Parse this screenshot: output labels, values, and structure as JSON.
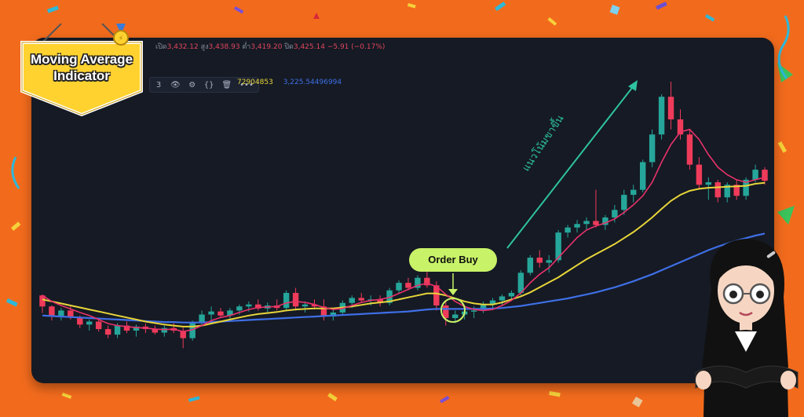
{
  "badge": {
    "title_line1": "Moving Average",
    "title_line2": "Indicator"
  },
  "header": {
    "open_label": "เปิด",
    "open": "3,432.12",
    "high_label": "สูง",
    "high": "3,438.93",
    "low_label": "ต่ำ",
    "low": "3,419.20",
    "close_label": "ปิด",
    "close": "3,425.14",
    "change": "−5.91 (−0.17%)"
  },
  "toolbar": {
    "indicator_num": "3",
    "eye": "👁",
    "gear": "⚙",
    "braces": "{}",
    "trash": "🗑",
    "more": "•••"
  },
  "ma_values": {
    "ma_yellow": "72904853",
    "ma_blue": "3,225.54496994"
  },
  "annotations": {
    "order_buy": "Order Buy",
    "trend": "แนวโน้มขาขึ้น"
  },
  "colors": {
    "up": "#26a69a",
    "down": "#ef3b5a",
    "ma_fast": "#e8326a",
    "ma_mid": "#e8d53a",
    "ma_slow": "#3f6fe6",
    "panel": "#151a24",
    "background": "#f26b1d"
  },
  "chart_data": {
    "type": "candlestick",
    "grid": false,
    "series": [
      {
        "name": "candles",
        "ohlc": [
          [
            3270,
            3272,
            3235,
            3248
          ],
          [
            3248,
            3250,
            3220,
            3228
          ],
          [
            3228,
            3245,
            3220,
            3240
          ],
          [
            3240,
            3248,
            3222,
            3226
          ],
          [
            3226,
            3230,
            3205,
            3212
          ],
          [
            3212,
            3222,
            3200,
            3218
          ],
          [
            3218,
            3222,
            3198,
            3203
          ],
          [
            3203,
            3210,
            3185,
            3192
          ],
          [
            3192,
            3215,
            3185,
            3210
          ],
          [
            3210,
            3218,
            3195,
            3200
          ],
          [
            3200,
            3212,
            3188,
            3208
          ],
          [
            3208,
            3214,
            3195,
            3203
          ],
          [
            3203,
            3210,
            3192,
            3196
          ],
          [
            3196,
            3210,
            3188,
            3205
          ],
          [
            3205,
            3215,
            3195,
            3200
          ],
          [
            3200,
            3206,
            3165,
            3185
          ],
          [
            3185,
            3220,
            3180,
            3215
          ],
          [
            3215,
            3240,
            3210,
            3232
          ],
          [
            3232,
            3248,
            3220,
            3238
          ],
          [
            3238,
            3245,
            3225,
            3230
          ],
          [
            3230,
            3245,
            3222,
            3240
          ],
          [
            3240,
            3252,
            3232,
            3248
          ],
          [
            3248,
            3258,
            3238,
            3252
          ],
          [
            3252,
            3262,
            3240,
            3244
          ],
          [
            3244,
            3256,
            3235,
            3250
          ],
          [
            3250,
            3262,
            3240,
            3245
          ],
          [
            3245,
            3280,
            3240,
            3275
          ],
          [
            3275,
            3285,
            3240,
            3248
          ],
          [
            3248,
            3258,
            3236,
            3252
          ],
          [
            3252,
            3262,
            3242,
            3248
          ],
          [
            3248,
            3262,
            3220,
            3228
          ],
          [
            3228,
            3242,
            3220,
            3236
          ],
          [
            3236,
            3260,
            3230,
            3255
          ],
          [
            3255,
            3270,
            3245,
            3265
          ],
          [
            3265,
            3275,
            3255,
            3260
          ],
          [
            3260,
            3270,
            3250,
            3262
          ],
          [
            3262,
            3270,
            3248,
            3255
          ],
          [
            3255,
            3285,
            3250,
            3280
          ],
          [
            3280,
            3300,
            3275,
            3295
          ],
          [
            3295,
            3305,
            3280,
            3285
          ],
          [
            3285,
            3310,
            3280,
            3305
          ],
          [
            3305,
            3320,
            3285,
            3290
          ],
          [
            3290,
            3298,
            3240,
            3250
          ],
          [
            3250,
            3260,
            3210,
            3225
          ],
          [
            3225,
            3240,
            3215,
            3232
          ],
          [
            3232,
            3245,
            3222,
            3238
          ],
          [
            3238,
            3248,
            3225,
            3240
          ],
          [
            3240,
            3258,
            3235,
            3252
          ],
          [
            3252,
            3265,
            3245,
            3260
          ],
          [
            3260,
            3272,
            3250,
            3268
          ],
          [
            3268,
            3280,
            3260,
            3275
          ],
          [
            3275,
            3320,
            3270,
            3315
          ],
          [
            3315,
            3350,
            3310,
            3345
          ],
          [
            3345,
            3360,
            3325,
            3335
          ],
          [
            3335,
            3350,
            3315,
            3340
          ],
          [
            3340,
            3400,
            3335,
            3395
          ],
          [
            3395,
            3410,
            3385,
            3405
          ],
          [
            3405,
            3420,
            3395,
            3412
          ],
          [
            3412,
            3425,
            3400,
            3418
          ],
          [
            3418,
            3480,
            3405,
            3410
          ],
          [
            3410,
            3430,
            3400,
            3425
          ],
          [
            3425,
            3450,
            3415,
            3440
          ],
          [
            3440,
            3480,
            3430,
            3470
          ],
          [
            3470,
            3490,
            3455,
            3480
          ],
          [
            3480,
            3540,
            3475,
            3535
          ],
          [
            3535,
            3600,
            3525,
            3590
          ],
          [
            3590,
            3670,
            3580,
            3665
          ],
          [
            3665,
            3695,
            3600,
            3620
          ],
          [
            3620,
            3640,
            3580,
            3590
          ],
          [
            3590,
            3600,
            3520,
            3530
          ],
          [
            3530,
            3545,
            3480,
            3490
          ],
          [
            3490,
            3505,
            3460,
            3495
          ],
          [
            3495,
            3500,
            3455,
            3465
          ],
          [
            3465,
            3495,
            3455,
            3490
          ],
          [
            3490,
            3500,
            3460,
            3468
          ],
          [
            3468,
            3505,
            3460,
            3500
          ],
          [
            3500,
            3530,
            3495,
            3520
          ],
          [
            3520,
            3525,
            3490,
            3498
          ]
        ]
      },
      {
        "name": "ma_fast",
        "values": [
          3270,
          3258,
          3250,
          3243,
          3236,
          3230,
          3222,
          3214,
          3210,
          3208,
          3206,
          3205,
          3203,
          3202,
          3203,
          3198,
          3202,
          3210,
          3220,
          3226,
          3230,
          3236,
          3242,
          3246,
          3247,
          3248,
          3255,
          3258,
          3256,
          3252,
          3246,
          3242,
          3244,
          3250,
          3256,
          3260,
          3262,
          3266,
          3274,
          3282,
          3290,
          3294,
          3288,
          3272,
          3258,
          3248,
          3242,
          3240,
          3242,
          3250,
          3260,
          3275,
          3295,
          3312,
          3325,
          3345,
          3365,
          3385,
          3400,
          3408,
          3414,
          3422,
          3435,
          3450,
          3468,
          3495,
          3535,
          3570,
          3595,
          3600,
          3580,
          3550,
          3525,
          3510,
          3500,
          3495,
          3500,
          3505
        ]
      },
      {
        "name": "ma_mid",
        "values": [
          3262,
          3258,
          3254,
          3250,
          3246,
          3242,
          3238,
          3234,
          3230,
          3226,
          3222,
          3218,
          3215,
          3212,
          3210,
          3208,
          3208,
          3210,
          3214,
          3218,
          3222,
          3226,
          3230,
          3233,
          3235,
          3237,
          3240,
          3242,
          3243,
          3244,
          3244,
          3244,
          3246,
          3248,
          3251,
          3254,
          3256,
          3258,
          3262,
          3266,
          3270,
          3274,
          3274,
          3270,
          3264,
          3258,
          3254,
          3252,
          3252,
          3256,
          3262,
          3268,
          3276,
          3286,
          3296,
          3306,
          3318,
          3330,
          3342,
          3352,
          3362,
          3372,
          3384,
          3396,
          3410,
          3425,
          3442,
          3458,
          3470,
          3478,
          3482,
          3484,
          3485,
          3486,
          3487,
          3488,
          3492,
          3494
        ]
      },
      {
        "name": "ma_slow",
        "values": [
          3230,
          3229,
          3228,
          3227,
          3226,
          3225,
          3224,
          3223,
          3222,
          3221,
          3220,
          3219,
          3218,
          3217,
          3217,
          3216,
          3216,
          3216,
          3217,
          3218,
          3219,
          3220,
          3221,
          3222,
          3223,
          3224,
          3225,
          3226,
          3227,
          3228,
          3229,
          3230,
          3231,
          3232,
          3233,
          3234,
          3235,
          3236,
          3237,
          3238,
          3240,
          3242,
          3243,
          3243,
          3243,
          3243,
          3243,
          3243,
          3244,
          3245,
          3247,
          3249,
          3252,
          3255,
          3258,
          3261,
          3264,
          3268,
          3272,
          3276,
          3281,
          3286,
          3292,
          3298,
          3305,
          3312,
          3320,
          3328,
          3336,
          3344,
          3352,
          3360,
          3367,
          3373,
          3379,
          3384,
          3389,
          3393
        ]
      }
    ]
  }
}
